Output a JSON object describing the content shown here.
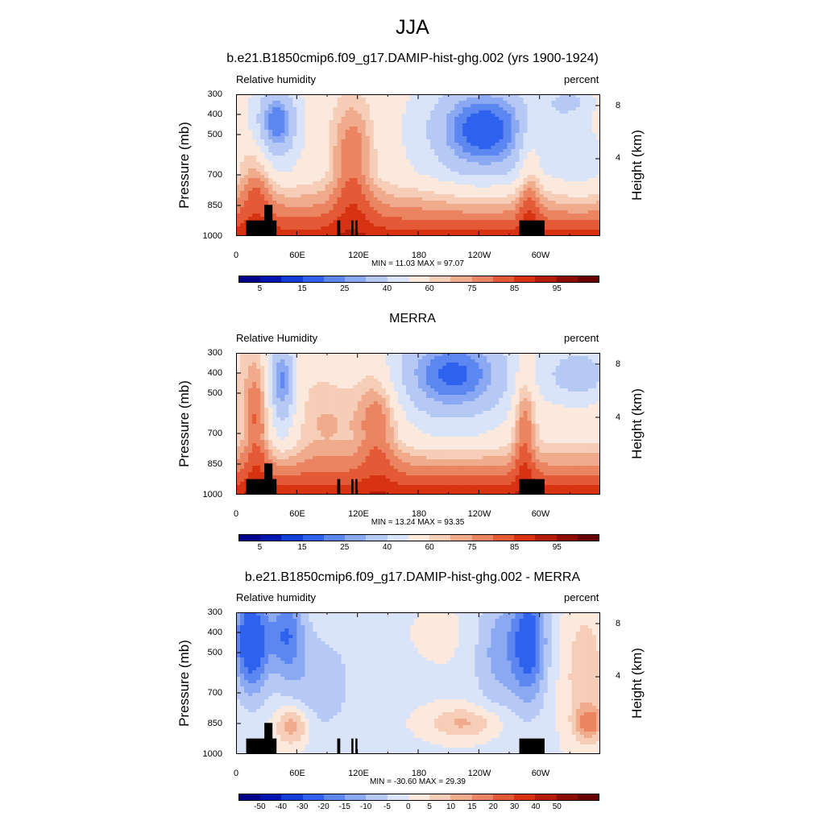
{
  "main_title": "JJA",
  "colors": {
    "abs": [
      "#00008b",
      "#0015b0",
      "#0f3fd6",
      "#2e62ee",
      "#5c86f0",
      "#8aa9f2",
      "#b6c9f5",
      "#dae4f8",
      "#fbe9dd",
      "#f6cdb7",
      "#f0ab8c",
      "#ea8461",
      "#e45a37",
      "#d73313",
      "#b31c06",
      "#8b0b00",
      "#660000"
    ],
    "diff": [
      "#00008b",
      "#0015b0",
      "#0f3fd6",
      "#2e62ee",
      "#5c86f0",
      "#8aa9f2",
      "#b6c9f5",
      "#dae4f8",
      "#fbe9dd",
      "#f6cdb7",
      "#f0ab8c",
      "#ea8461",
      "#e45a37",
      "#d73313",
      "#b31c06",
      "#8b0b00",
      "#660000"
    ]
  },
  "chart_data": [
    {
      "type": "heatmap",
      "title": "b.e21.B1850cmip6.f09_g17.DAMIP-hist-ghg.002 (yrs 1900-1924)",
      "left_label": "Relative humidity",
      "right_label": "percent",
      "ylabel": "Pressure (mb)",
      "ylabel_right": "Height (km)",
      "yticks": [
        "300",
        "400",
        "500",
        "700",
        "850",
        "1000"
      ],
      "yticks_right": [
        "8",
        "4"
      ],
      "xticks": [
        "0",
        "60E",
        "120E",
        "180",
        "120W",
        "60W"
      ],
      "stats": "MIN =  11.03  MAX =  97.07",
      "colorbar_labels": [
        "5",
        "15",
        "25",
        "40",
        "60",
        "75",
        "85",
        "95"
      ],
      "colorbar_levels": [
        5,
        10,
        15,
        20,
        25,
        30,
        40,
        50,
        60,
        65,
        70,
        75,
        80,
        85,
        90,
        95
      ],
      "x_range": [
        0,
        360
      ],
      "y_range": [
        300,
        1000
      ],
      "y_log": true
    },
    {
      "type": "heatmap",
      "title": "MERRA",
      "left_label": "Relative Humidity",
      "right_label": "percent",
      "ylabel": "Pressure (mb)",
      "ylabel_right": "Height (km)",
      "yticks": [
        "300",
        "400",
        "500",
        "700",
        "850",
        "1000"
      ],
      "yticks_right": [
        "8",
        "4"
      ],
      "xticks": [
        "0",
        "60E",
        "120E",
        "180",
        "120W",
        "60W"
      ],
      "stats": "MIN =  13.24  MAX =  93.35",
      "colorbar_labels": [
        "5",
        "15",
        "25",
        "40",
        "60",
        "75",
        "85",
        "95"
      ],
      "colorbar_levels": [
        5,
        10,
        15,
        20,
        25,
        30,
        40,
        50,
        60,
        65,
        70,
        75,
        80,
        85,
        90,
        95
      ],
      "x_range": [
        0,
        360
      ],
      "y_range": [
        300,
        1000
      ],
      "y_log": true
    },
    {
      "type": "heatmap",
      "title": "b.e21.B1850cmip6.f09_g17.DAMIP-hist-ghg.002 - MERRA",
      "left_label": "Relative humidity",
      "right_label": "percent",
      "ylabel": "Pressure (mb)",
      "ylabel_right": "Height (km)",
      "yticks": [
        "300",
        "400",
        "500",
        "700",
        "850",
        "1000"
      ],
      "yticks_right": [
        "8",
        "4"
      ],
      "xticks": [
        "0",
        "60E",
        "120E",
        "180",
        "120W",
        "60W"
      ],
      "stats": "MIN = -30.60  MAX =  29.39",
      "colorbar_labels": [
        "-50",
        "-40",
        "-30",
        "-20",
        "-15",
        "-10",
        "-5",
        "0",
        "5",
        "10",
        "15",
        "20",
        "30",
        "40",
        "50"
      ],
      "colorbar_levels": [
        -50,
        -40,
        -30,
        -20,
        -15,
        -10,
        -5,
        0,
        5,
        10,
        15,
        20,
        30,
        40,
        50
      ],
      "x_range": [
        0,
        360
      ],
      "y_range": [
        300,
        1000
      ],
      "y_log": true
    }
  ]
}
